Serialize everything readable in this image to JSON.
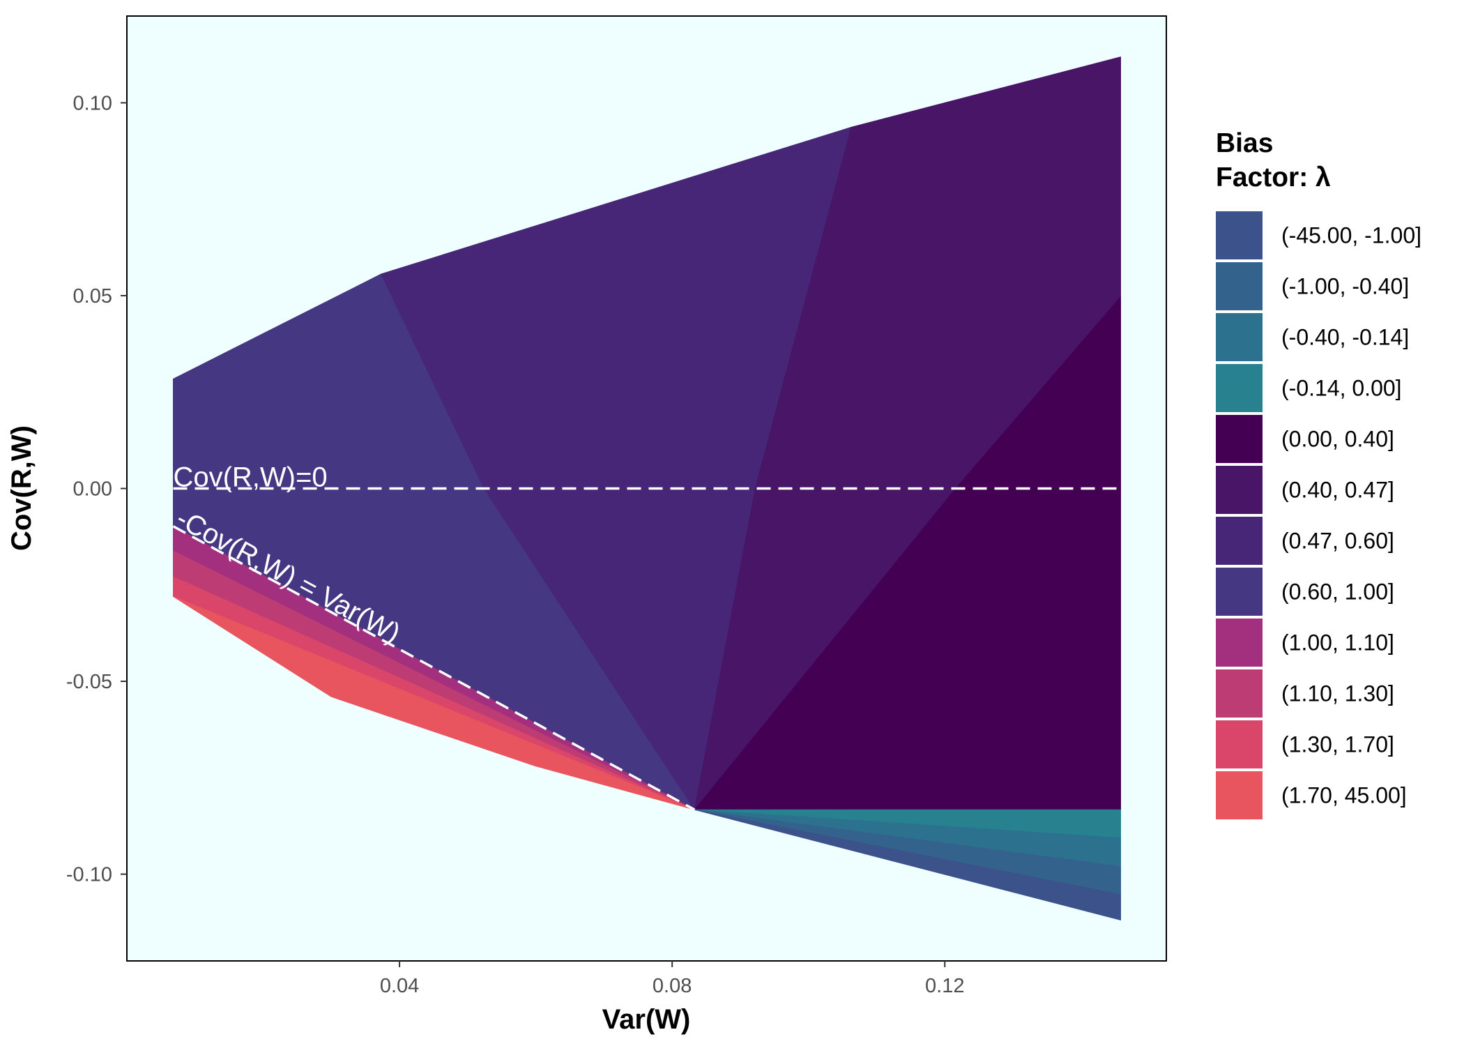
{
  "chart_data": {
    "type": "area",
    "xlabel": "Var(W)",
    "ylabel": "Cov(R,W)",
    "xlim": [
      0.0,
      0.1525
    ],
    "ylim": [
      -0.1225,
      0.1225
    ],
    "x_ticks": [
      0.04,
      0.08,
      0.12
    ],
    "x_tick_labels": [
      "0.04",
      "0.08",
      "0.12"
    ],
    "y_ticks": [
      -0.1,
      -0.05,
      0.0,
      0.05,
      0.1
    ],
    "y_tick_labels": [
      "-0.10",
      "-0.05",
      "0.00",
      "0.05",
      "0.10"
    ],
    "plot_background": "#effefe",
    "grid": false,
    "legend": {
      "title_line1": "Bias",
      "title_line2": "Factor: λ",
      "position": "right",
      "entries": [
        {
          "label": "(-45.00, -1.00]",
          "color": "#3b528b"
        },
        {
          "label": "(-1.00, -0.40]",
          "color": "#33638d"
        },
        {
          "label": "(-0.40, -0.14]",
          "color": "#2c728e"
        },
        {
          "label": "(-0.14, 0.00]",
          "color": "#27818e"
        },
        {
          "label": "(0.00, 0.40]",
          "color": "#440154"
        },
        {
          "label": "(0.40, 0.47]",
          "color": "#481567"
        },
        {
          "label": "(0.47, 0.60]",
          "color": "#482677"
        },
        {
          "label": "(0.60, 1.00]",
          "color": "#453781"
        },
        {
          "label": "(1.00, 1.10]",
          "color": "#a3307e"
        },
        {
          "label": "(1.10, 1.30]",
          "color": "#be3c74"
        },
        {
          "label": "(1.30, 1.70]",
          "color": "#d9466a"
        },
        {
          "label": "(1.70, 45.00]",
          "color": "#e8555e"
        }
      ]
    },
    "regions": [
      {
        "label": "(0.60, 1.00]",
        "points": [
          [
            0.0068,
            0.0284
          ],
          [
            0.0068,
            -0.0098
          ],
          [
            0.0524,
            0.0
          ],
          [
            0.0373,
            0.0556
          ]
        ]
      },
      {
        "label": "(0.60, 1.00]",
        "points": [
          [
            0.0068,
            -0.0098
          ],
          [
            0.0833,
            -0.0833
          ],
          [
            0.0524,
            0.0
          ]
        ]
      },
      {
        "label": "(0.47, 0.60]",
        "points": [
          [
            0.0373,
            0.0556
          ],
          [
            0.0524,
            0.0
          ],
          [
            0.0833,
            -0.0833
          ],
          [
            0.0922,
            0.0
          ],
          [
            0.1063,
            0.0937
          ]
        ]
      },
      {
        "label": "(0.40, 0.47]",
        "points": [
          [
            0.1063,
            0.0937
          ],
          [
            0.0922,
            0.0
          ],
          [
            0.0833,
            -0.0833
          ],
          [
            0.1216,
            0.0
          ],
          [
            0.1458,
            0.0497
          ],
          [
            0.1458,
            0.1119
          ]
        ]
      },
      {
        "label": "(0.00, 0.40]",
        "points": [
          [
            0.1458,
            0.0497
          ],
          [
            0.1216,
            0.0
          ],
          [
            0.0833,
            -0.0833
          ],
          [
            0.1458,
            -0.0833
          ]
        ]
      },
      {
        "label": "(-0.14, 0.00]",
        "points": [
          [
            0.0833,
            -0.0833
          ],
          [
            0.1458,
            -0.0833
          ],
          [
            0.1458,
            -0.0906
          ]
        ]
      },
      {
        "label": "(-0.40, -0.14]",
        "points": [
          [
            0.0833,
            -0.0833
          ],
          [
            0.1458,
            -0.0906
          ],
          [
            0.1458,
            -0.098
          ]
        ]
      },
      {
        "label": "(-1.00, -0.40]",
        "points": [
          [
            0.0833,
            -0.0833
          ],
          [
            0.1458,
            -0.098
          ],
          [
            0.1458,
            -0.1053
          ]
        ]
      },
      {
        "label": "(-45.00, -1.00]",
        "points": [
          [
            0.0833,
            -0.0833
          ],
          [
            0.1458,
            -0.1053
          ],
          [
            0.1458,
            -0.1119
          ]
        ]
      },
      {
        "label": "(1.00, 1.10]",
        "points": [
          [
            0.0068,
            -0.0098
          ],
          [
            0.0068,
            -0.0162
          ],
          [
            0.0833,
            -0.0833
          ]
        ]
      },
      {
        "label": "(1.10, 1.30]",
        "points": [
          [
            0.0068,
            -0.0162
          ],
          [
            0.0068,
            -0.0229
          ],
          [
            0.0833,
            -0.0833
          ]
        ]
      },
      {
        "label": "(1.30, 1.70]",
        "points": [
          [
            0.0068,
            -0.0229
          ],
          [
            0.0068,
            -0.028
          ],
          [
            0.0833,
            -0.0833
          ]
        ]
      },
      {
        "label": "(1.70, 45.00]",
        "points": [
          [
            0.0068,
            -0.028
          ],
          [
            0.03,
            -0.054
          ],
          [
            0.06,
            -0.072
          ],
          [
            0.0833,
            -0.0833
          ]
        ]
      }
    ],
    "lines": [
      {
        "label": "Cov(R,W)=0",
        "style": "dashed",
        "color": "#ffffff",
        "points": [
          [
            0.0068,
            0.0
          ],
          [
            0.1458,
            0.0
          ]
        ]
      },
      {
        "label": "-Cov(R,W) = Var(W)",
        "style": "dashed",
        "color": "#ffffff",
        "points": [
          [
            0.0068,
            -0.0098
          ],
          [
            0.0833,
            -0.0833
          ]
        ]
      }
    ],
    "annotations": [
      {
        "text": "Cov(R,W)=0",
        "x": 0.0068,
        "y": 0.0
      },
      {
        "text": "-Cov(R,W) = Var(W)",
        "x": 0.0068,
        "y": -0.0098
      }
    ]
  }
}
